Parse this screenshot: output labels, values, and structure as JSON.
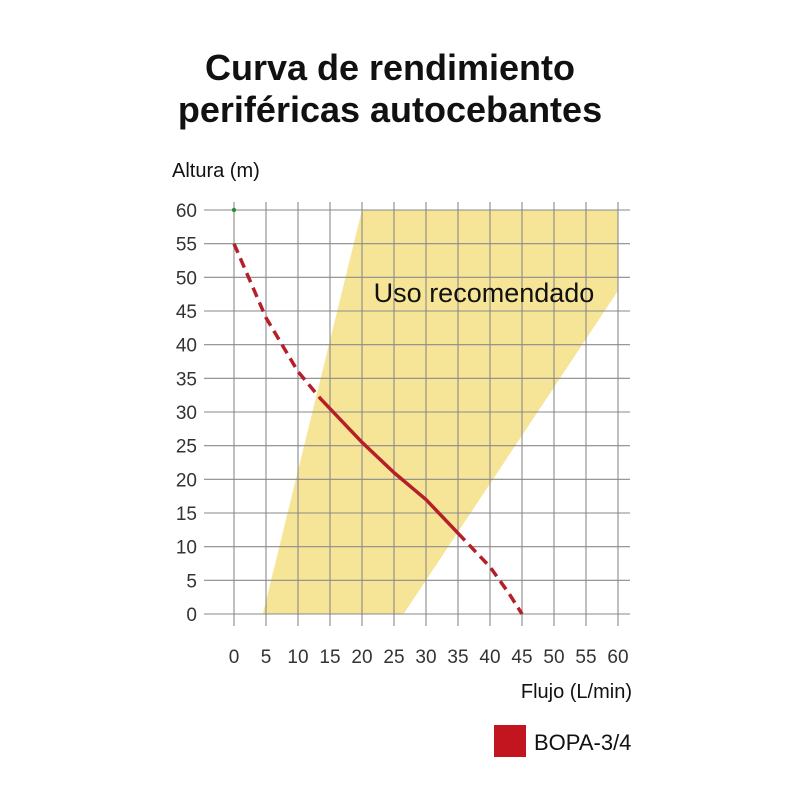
{
  "chart_data": {
    "type": "line",
    "title_line1": "Curva de rendimiento",
    "title_line2": "periféricas autocebantes",
    "ylabel": "Altura (m)",
    "xlabel": "Flujo (L/min)",
    "xlim": [
      0,
      60
    ],
    "ylim": [
      0,
      60
    ],
    "x_ticks": [
      0,
      5,
      10,
      15,
      20,
      25,
      30,
      35,
      40,
      45,
      50,
      55,
      60
    ],
    "y_ticks": [
      60,
      55,
      50,
      45,
      40,
      35,
      30,
      25,
      20,
      15,
      10,
      5,
      0
    ],
    "grid": true,
    "recommended_region": {
      "label": "Uso recomendado",
      "color": "#f7e597",
      "polygon": [
        [
          4.5,
          0
        ],
        [
          20,
          60
        ],
        [
          60,
          60
        ],
        [
          60,
          48
        ],
        [
          26.5,
          0
        ]
      ]
    },
    "series": [
      {
        "name": "BOPA-3/4",
        "color": "#b51f2a",
        "points": [
          [
            0,
            55
          ],
          [
            5,
            44
          ],
          [
            10,
            36
          ],
          [
            13.5,
            32
          ],
          [
            20,
            25.5
          ],
          [
            25,
            21
          ],
          [
            30,
            17
          ],
          [
            35,
            12
          ],
          [
            40,
            7
          ],
          [
            43,
            3
          ],
          [
            45,
            0
          ]
        ],
        "solid_range": [
          13.5,
          35
        ]
      }
    ],
    "marker": {
      "x": 0,
      "y": 60,
      "color": "#2e8b3a"
    },
    "legend": {
      "label": "BOPA-3/4",
      "color": "#c3151f",
      "position": "bottom-right"
    }
  }
}
